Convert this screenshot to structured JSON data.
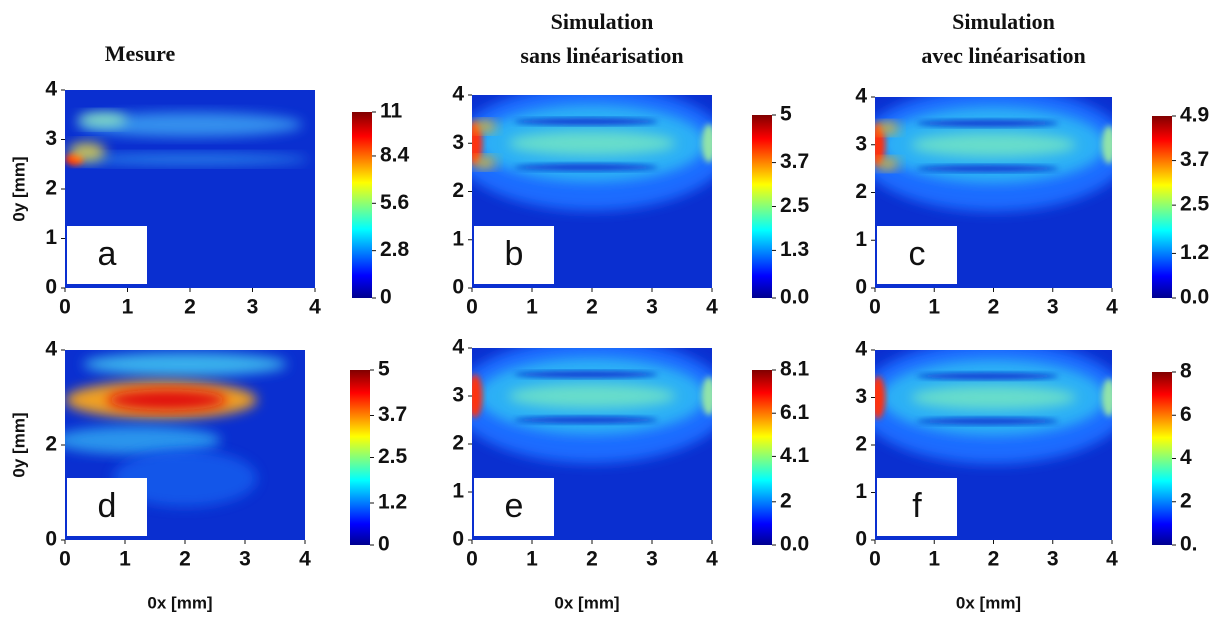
{
  "chart_data": [
    {
      "type": "heatmap",
      "title": "Mesure",
      "panel_label": "a",
      "ylabel": "0y [mm]",
      "xlim": [
        0,
        4
      ],
      "ylim": [
        0,
        4
      ],
      "xticks": [
        0,
        1,
        2,
        3,
        4
      ],
      "yticks": [
        0,
        1,
        2,
        3,
        4
      ],
      "clim": [
        0,
        11
      ],
      "cticks": [
        0,
        2.8,
        5.6,
        8.4,
        11
      ]
    },
    {
      "type": "heatmap",
      "title": "Simulation",
      "subtitle": "sans linéarisation",
      "panel_label": "b",
      "xlim": [
        0,
        4
      ],
      "ylim": [
        0,
        4
      ],
      "xticks": [
        0,
        1,
        2,
        3,
        4
      ],
      "yticks": [
        0,
        1,
        2,
        3,
        4
      ],
      "clim": [
        0,
        5
      ],
      "cticks": [
        {
          "value": 0,
          "label": "0.0"
        },
        1.3,
        2.5,
        3.7,
        5
      ]
    },
    {
      "type": "heatmap",
      "title": "Simulation",
      "subtitle": "avec linéarisation",
      "panel_label": "c",
      "xlim": [
        0,
        4
      ],
      "ylim": [
        0,
        4
      ],
      "xticks": [
        0,
        1,
        2,
        3,
        4
      ],
      "yticks": [
        0,
        1,
        2,
        3,
        4
      ],
      "clim": [
        0,
        4.9
      ],
      "cticks": [
        {
          "value": 0,
          "label": "0.0"
        },
        1.2,
        2.5,
        3.7,
        4.9
      ]
    },
    {
      "type": "heatmap",
      "panel_label": "d",
      "ylabel": "0y [mm]",
      "xlabel": "0x [mm]",
      "xlim": [
        0,
        4
      ],
      "ylim": [
        0,
        4
      ],
      "xticks": [
        0,
        1,
        2,
        3,
        4
      ],
      "yticks": [
        0,
        2,
        4
      ],
      "clim": [
        0,
        5
      ],
      "cticks": [
        0,
        1.2,
        2.5,
        3.7,
        5
      ]
    },
    {
      "type": "heatmap",
      "panel_label": "e",
      "xlabel": "0x [mm]",
      "xlim": [
        0,
        4
      ],
      "ylim": [
        0,
        4
      ],
      "xticks": [
        0,
        1,
        2,
        3,
        4
      ],
      "yticks": [
        0,
        1,
        2,
        3,
        4
      ],
      "clim": [
        0,
        8.1
      ],
      "cticks": [
        {
          "value": 0,
          "label": "0.0"
        },
        2,
        4.1,
        6.1,
        8.1
      ]
    },
    {
      "type": "heatmap",
      "panel_label": "f",
      "xlabel": "0x [mm]",
      "xlim": [
        0,
        4
      ],
      "ylim": [
        0,
        4
      ],
      "xticks": [
        0,
        1,
        2,
        3,
        4
      ],
      "yticks": [
        0,
        1,
        2,
        3,
        4
      ],
      "clim": [
        0,
        8
      ],
      "cticks": [
        {
          "value": 0,
          "label": "0."
        },
        2,
        4,
        6,
        8
      ]
    }
  ]
}
